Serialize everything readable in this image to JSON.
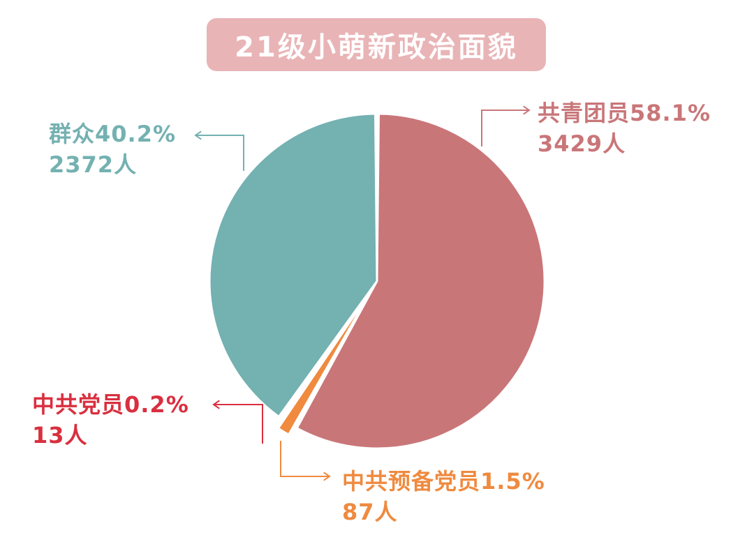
{
  "title": "21级小萌新政治面貌",
  "colors": {
    "title_bg": "#e9b4b6",
    "party_member": "#d92f3f",
    "probationary": "#ef8a3f",
    "youth_league": "#c97679",
    "masses": "#74b1b1"
  },
  "chart_data": {
    "type": "pie",
    "title": "21级小萌新政治面貌",
    "slices": [
      {
        "name": "中共党员",
        "percent": 0.2,
        "count": 13,
        "pct_label": "中共党员0.2%",
        "count_label": "13人",
        "color": "#d92f3f"
      },
      {
        "name": "中共预备党员",
        "percent": 1.5,
        "count": 87,
        "pct_label": "中共预备党员1.5%",
        "count_label": "87人",
        "color": "#ef8a3f"
      },
      {
        "name": "共青团员",
        "percent": 58.1,
        "count": 3429,
        "pct_label": "共青团员58.1%",
        "count_label": "3429人",
        "color": "#c97679"
      },
      {
        "name": "群众",
        "percent": 40.2,
        "count": 2372,
        "pct_label": "群众40.2%",
        "count_label": "2372人",
        "color": "#74b1b1"
      }
    ]
  }
}
